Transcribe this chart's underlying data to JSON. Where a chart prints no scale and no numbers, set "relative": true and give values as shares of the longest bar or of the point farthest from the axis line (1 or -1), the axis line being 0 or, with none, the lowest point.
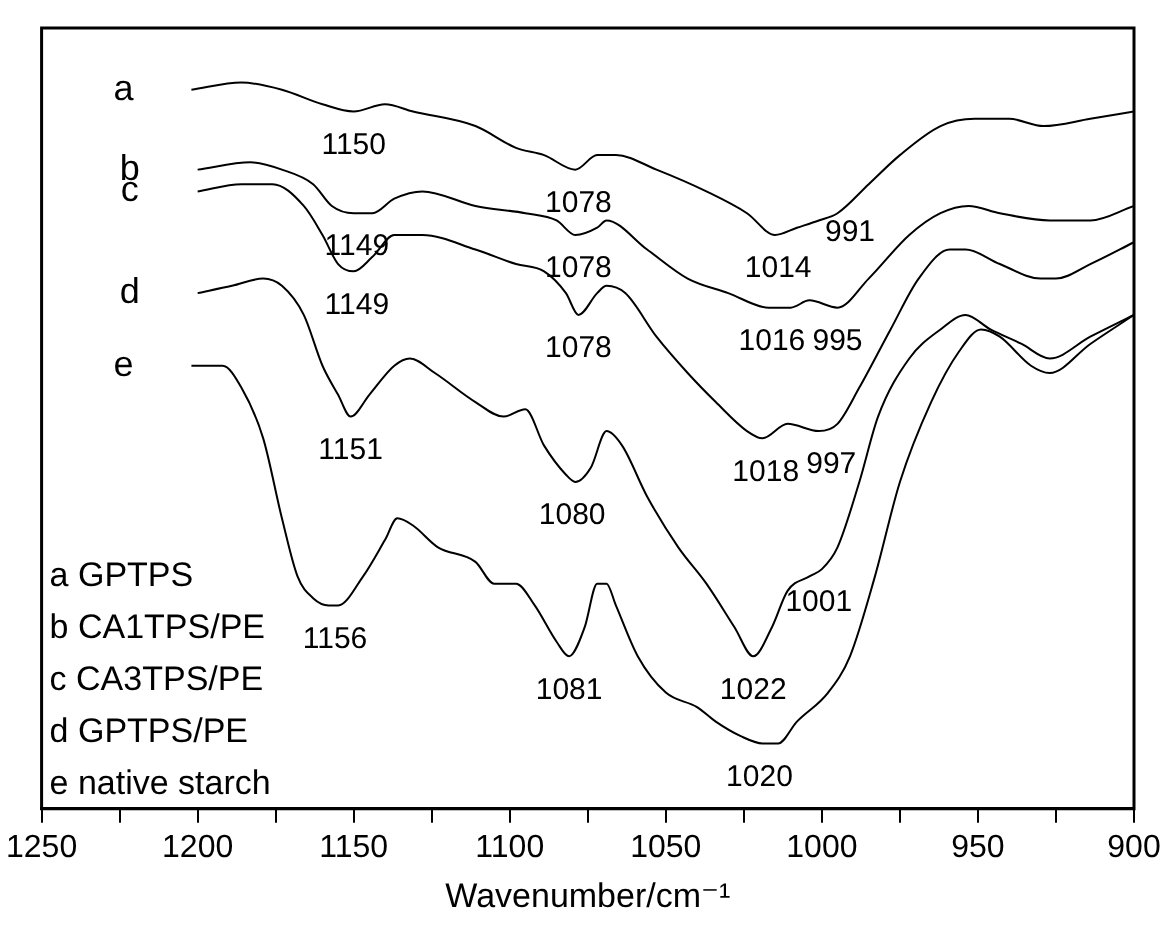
{
  "chart_data": {
    "type": "line",
    "relative": true,
    "xlabel": "Wavenumber/cm⁻¹",
    "xlim": [
      1250,
      900
    ],
    "xticks": [
      1250,
      {
        "value": 1225,
        "label": null
      },
      1200,
      {
        "value": 1175,
        "label": null
      },
      1150,
      {
        "value": 1125,
        "label": null
      },
      1100,
      {
        "value": 1075,
        "label": null
      },
      1050,
      {
        "value": 1025,
        "label": null
      },
      1000,
      {
        "value": 975,
        "label": null
      },
      950,
      {
        "value": 925,
        "label": null
      },
      900
    ],
    "grid": false,
    "legend": false,
    "marker": "none",
    "line_style": "solid",
    "series": [
      {
        "name": "a",
        "color": "#000000",
        "x": [
          1202,
          1186,
          1173,
          1160,
          1150,
          1140,
          1131,
          1111,
          1098,
          1089,
          1079,
          1072,
          1066,
          1053,
          1037,
          1024,
          1015,
          1008,
          1001,
          995,
          985,
          975,
          962,
          951,
          940,
          929,
          914,
          900
        ],
        "values": [
          0.99,
          1.0,
          0.99,
          0.97,
          0.96,
          0.97,
          0.96,
          0.94,
          0.91,
          0.9,
          0.88,
          0.9,
          0.9,
          0.88,
          0.85,
          0.82,
          0.79,
          0.8,
          0.81,
          0.82,
          0.86,
          0.9,
          0.94,
          0.95,
          0.95,
          0.94,
          0.95,
          0.96
        ]
      },
      {
        "name": "b",
        "color": "#000000",
        "x": [
          1200,
          1183,
          1173,
          1163,
          1157,
          1150,
          1144,
          1137,
          1128,
          1111,
          1095,
          1085,
          1079,
          1072,
          1069,
          1056,
          1043,
          1030,
          1017,
          1010,
          1004,
          995,
          985,
          972,
          962,
          953,
          943,
          927,
          914,
          900
        ],
        "values": [
          0.88,
          0.89,
          0.88,
          0.86,
          0.83,
          0.82,
          0.82,
          0.84,
          0.85,
          0.83,
          0.82,
          0.81,
          0.79,
          0.8,
          0.81,
          0.77,
          0.73,
          0.71,
          0.69,
          0.69,
          0.7,
          0.69,
          0.73,
          0.79,
          0.82,
          0.83,
          0.82,
          0.81,
          0.81,
          0.83
        ]
      },
      {
        "name": "c",
        "color": "#000000",
        "x": [
          1200,
          1186,
          1176,
          1166,
          1160,
          1155,
          1150,
          1144,
          1137,
          1128,
          1111,
          1098,
          1089,
          1082,
          1078,
          1072,
          1069,
          1063,
          1053,
          1043,
          1034,
          1024,
          1019,
          1011,
          1001,
          995,
          988,
          978,
          969,
          959,
          954,
          943,
          930,
          925,
          914,
          900
        ],
        "values": [
          0.85,
          0.86,
          0.86,
          0.83,
          0.79,
          0.75,
          0.74,
          0.76,
          0.79,
          0.79,
          0.77,
          0.75,
          0.74,
          0.71,
          0.68,
          0.71,
          0.72,
          0.71,
          0.65,
          0.6,
          0.56,
          0.52,
          0.51,
          0.53,
          0.52,
          0.53,
          0.58,
          0.66,
          0.73,
          0.77,
          0.77,
          0.75,
          0.73,
          0.73,
          0.75,
          0.78
        ]
      },
      {
        "name": "d",
        "color": "#000000",
        "x": [
          1200,
          1189,
          1179,
          1173,
          1166,
          1160,
          1155,
          1151,
          1145,
          1137,
          1132,
          1124,
          1111,
          1102,
          1095,
          1089,
          1082,
          1079,
          1074,
          1069,
          1064,
          1056,
          1046,
          1037,
          1028,
          1022,
          1016,
          1011,
          1004,
          1000,
          995,
          988,
          982,
          972,
          962,
          954,
          946,
          936,
          927,
          914,
          900
        ],
        "values": [
          0.71,
          0.72,
          0.73,
          0.72,
          0.68,
          0.61,
          0.57,
          0.54,
          0.57,
          0.61,
          0.62,
          0.6,
          0.56,
          0.54,
          0.55,
          0.5,
          0.46,
          0.45,
          0.47,
          0.52,
          0.5,
          0.43,
          0.36,
          0.31,
          0.25,
          0.21,
          0.25,
          0.3,
          0.32,
          0.33,
          0.36,
          0.45,
          0.54,
          0.62,
          0.66,
          0.68,
          0.66,
          0.64,
          0.62,
          0.65,
          0.68
        ]
      },
      {
        "name": "e",
        "color": "#000000",
        "x": [
          1202,
          1192,
          1186,
          1179,
          1173,
          1168,
          1163,
          1158,
          1155,
          1147,
          1140,
          1136,
          1131,
          1123,
          1111,
          1105,
          1098,
          1092,
          1085,
          1081,
          1076,
          1072,
          1069,
          1066,
          1059,
          1050,
          1040,
          1034,
          1026,
          1019,
          1014,
          1008,
          998,
          991,
          983,
          975,
          965,
          956,
          949,
          943,
          933,
          927,
          914,
          900
        ],
        "values": [
          0.61,
          0.61,
          0.58,
          0.51,
          0.4,
          0.32,
          0.29,
          0.28,
          0.28,
          0.32,
          0.37,
          0.4,
          0.39,
          0.36,
          0.34,
          0.31,
          0.31,
          0.28,
          0.23,
          0.21,
          0.25,
          0.31,
          0.31,
          0.28,
          0.21,
          0.16,
          0.14,
          0.12,
          0.1,
          0.09,
          0.09,
          0.12,
          0.16,
          0.21,
          0.32,
          0.45,
          0.56,
          0.63,
          0.66,
          0.65,
          0.61,
          0.6,
          0.64,
          0.68
        ]
      }
    ],
    "annotations": [
      {
        "text": "1150",
        "x": 1150,
        "y": 0.96
      },
      {
        "text": "1078",
        "x": 1078,
        "y": 0.88
      },
      {
        "text": "1014",
        "x": 1014,
        "y": 0.79
      },
      {
        "text": "991",
        "x": 991,
        "y": 0.84
      },
      {
        "text": "1149",
        "x": 1149,
        "y": 0.82
      },
      {
        "text": "1078",
        "x": 1078,
        "y": 0.79
      },
      {
        "text": "1016",
        "x": 1016,
        "y": 0.69
      },
      {
        "text": "995",
        "x": 995,
        "y": 0.69
      },
      {
        "text": "1149",
        "x": 1149,
        "y": 0.74
      },
      {
        "text": "1078",
        "x": 1078,
        "y": 0.68
      },
      {
        "text": "1018",
        "x": 1018,
        "y": 0.51
      },
      {
        "text": "997",
        "x": 997,
        "y": 0.52
      },
      {
        "text": "1151",
        "x": 1151,
        "y": 0.54
      },
      {
        "text": "1080",
        "x": 1080,
        "y": 0.45
      },
      {
        "text": "1022",
        "x": 1022,
        "y": 0.21
      },
      {
        "text": "1001",
        "x": 1001,
        "y": 0.33
      },
      {
        "text": "1156",
        "x": 1156,
        "y": 0.28
      },
      {
        "text": "1081",
        "x": 1081,
        "y": 0.21
      },
      {
        "text": "1020",
        "x": 1020,
        "y": 0.09
      },
      "a GPTPS",
      "b CA1TPS/PE",
      "c CA3TPS/PE",
      "d GPTPS/PE",
      "e native starch"
    ]
  }
}
